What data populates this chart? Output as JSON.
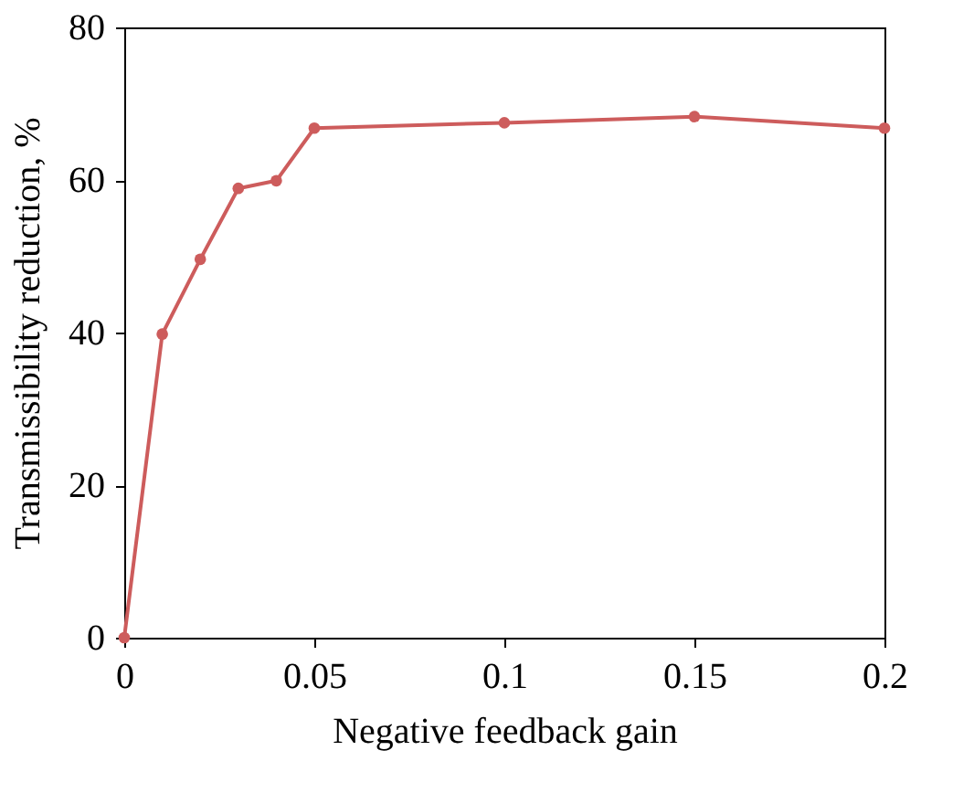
{
  "chart_data": {
    "type": "line",
    "xlabel": "Negative feedback gain",
    "ylabel": "Transmissibility reduction, %",
    "x": [
      0,
      0.01,
      0.02,
      0.03,
      0.04,
      0.05,
      0.1,
      0.15,
      0.2
    ],
    "series": [
      {
        "color": "#cd5c5c",
        "values": [
          0,
          39.8,
          49.6,
          58.9,
          59.9,
          66.8,
          67.5,
          68.3,
          66.8
        ]
      }
    ],
    "xlim": [
      0,
      0.2
    ],
    "xticks": [
      0,
      0.05,
      0.1,
      0.15,
      0.2
    ],
    "ylim": [
      0,
      80
    ],
    "yticks": [
      0,
      20,
      40,
      60,
      80
    ],
    "grid": false,
    "legend": false,
    "marker": "circle",
    "line_style": "solid"
  }
}
